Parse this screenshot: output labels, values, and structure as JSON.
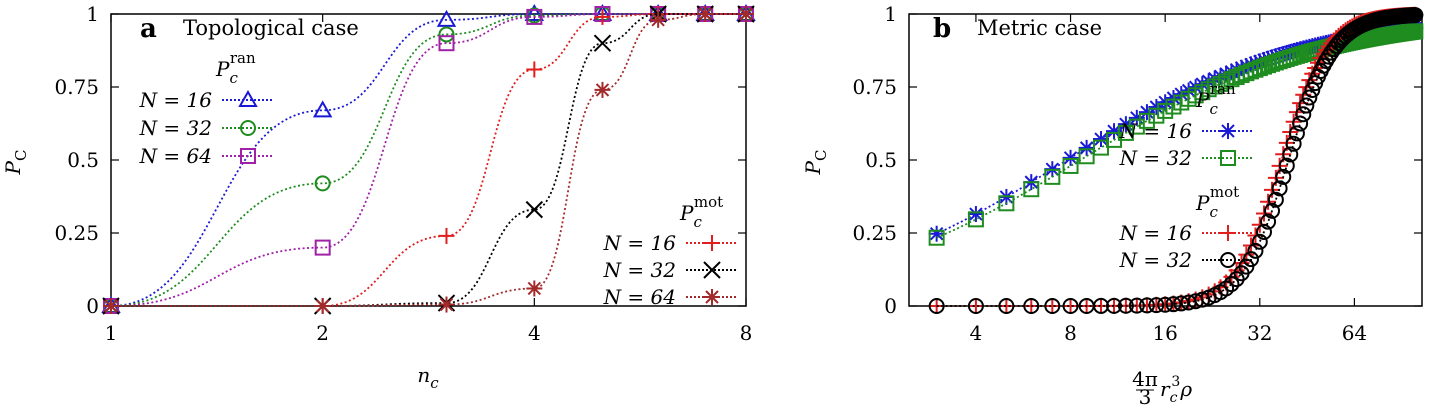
{
  "chart_data": [
    {
      "type": "line",
      "panel_letter": "a",
      "title": "Topological case",
      "xlabel": "n",
      "xlabel_sub": "c",
      "ylabel": "P",
      "ylabel_sub": "C",
      "x_scale": "log2",
      "xlim": [
        1,
        8
      ],
      "ylim": [
        0,
        1
      ],
      "x_ticks": [
        1,
        2,
        4,
        8
      ],
      "y_ticks": [
        0,
        0.25,
        0.5,
        0.75,
        1
      ],
      "y_tick_labels": [
        "0",
        "0.25",
        "0.5",
        "0.75",
        "1"
      ],
      "legend_groups": [
        {
          "heading": "P",
          "heading_sub": "c",
          "heading_sup": "ran",
          "placement": "upper-left",
          "series": [
            {
              "name": "N = 16",
              "marker": "triangle",
              "color": "#1a1ad6",
              "x": [
                1,
                2,
                3,
                4,
                5,
                6,
                7,
                8
              ],
              "y": [
                0,
                0.67,
                0.98,
                1.0,
                1.0,
                1.0,
                1.0,
                1.0
              ]
            },
            {
              "name": "N = 32",
              "marker": "circle",
              "color": "#1e8c1e",
              "x": [
                1,
                2,
                3,
                4,
                5,
                6,
                7,
                8
              ],
              "y": [
                0,
                0.42,
                0.93,
                0.995,
                1.0,
                1.0,
                1.0,
                1.0
              ]
            },
            {
              "name": "N = 64",
              "marker": "square",
              "color": "#a020a8",
              "x": [
                1,
                2,
                3,
                4,
                5,
                6,
                7,
                8
              ],
              "y": [
                0,
                0.2,
                0.9,
                0.99,
                1.0,
                1.0,
                1.0,
                1.0
              ]
            }
          ]
        },
        {
          "heading": "P",
          "heading_sub": "c",
          "heading_sup": "mot",
          "placement": "lower-right",
          "series": [
            {
              "name": "N = 16",
              "marker": "plus",
              "color": "#e21d1d",
              "x": [
                1,
                2,
                3,
                4,
                5,
                6,
                7,
                8
              ],
              "y": [
                0,
                0,
                0.24,
                0.81,
                0.99,
                1.0,
                1.0,
                1.0
              ]
            },
            {
              "name": "N = 32",
              "marker": "cross",
              "color": "#000000",
              "x": [
                1,
                2,
                3,
                4,
                5,
                6,
                7,
                8
              ],
              "y": [
                0,
                0,
                0.01,
                0.33,
                0.9,
                1.0,
                1.0,
                1.0
              ]
            },
            {
              "name": "N = 64",
              "marker": "star",
              "color": "#a32a2a",
              "x": [
                1,
                2,
                3,
                4,
                5,
                6,
                7,
                8
              ],
              "y": [
                0,
                0,
                0.005,
                0.06,
                0.74,
                0.98,
                1.0,
                1.0
              ]
            }
          ]
        }
      ]
    },
    {
      "type": "line",
      "panel_letter": "b",
      "title": "Metric case",
      "xlabel": "4π/3 r_c^3 ρ",
      "xlabel_parts": {
        "num": "4π",
        "den": "3",
        "r": "r",
        "r_sub": "c",
        "r_sup": "3",
        "rho": "ρ"
      },
      "ylabel": "P",
      "ylabel_sub": "C",
      "x_scale": "log2",
      "xlim": [
        2.45,
        105
      ],
      "ylim": [
        0,
        1
      ],
      "x_ticks": [
        4,
        8,
        16,
        32,
        64
      ],
      "y_ticks": [
        0,
        0.25,
        0.5,
        0.75,
        1
      ],
      "y_tick_labels": [
        "0",
        "0.25",
        "0.5",
        "0.75",
        "1"
      ],
      "legend_groups": [
        {
          "heading": "P",
          "heading_sub": "c",
          "heading_sup": "ran",
          "placement": "center-right",
          "series": [
            {
              "name": "N = 16",
              "marker": "star",
              "color": "#1a1ad6",
              "logistic": {
                "x0": 7.8,
                "k": 0.155
              }
            },
            {
              "name": "N = 32",
              "marker": "square",
              "color": "#1e8c1e",
              "logistic": {
                "x0": 8.6,
                "k": 0.16
              }
            }
          ]
        },
        {
          "heading": "P",
          "heading_sub": "c",
          "heading_sup": "mot",
          "placement": "lower-right",
          "series": [
            {
              "name": "N = 16",
              "marker": "plus",
              "color": "#e21d1d",
              "logistic": {
                "x0": 37.5,
                "k": 0.03
              }
            },
            {
              "name": "N = 32",
              "marker": "circle-open",
              "color": "#000000",
              "logistic": {
                "x0": 39.5,
                "k": 0.03
              }
            }
          ]
        }
      ]
    }
  ]
}
